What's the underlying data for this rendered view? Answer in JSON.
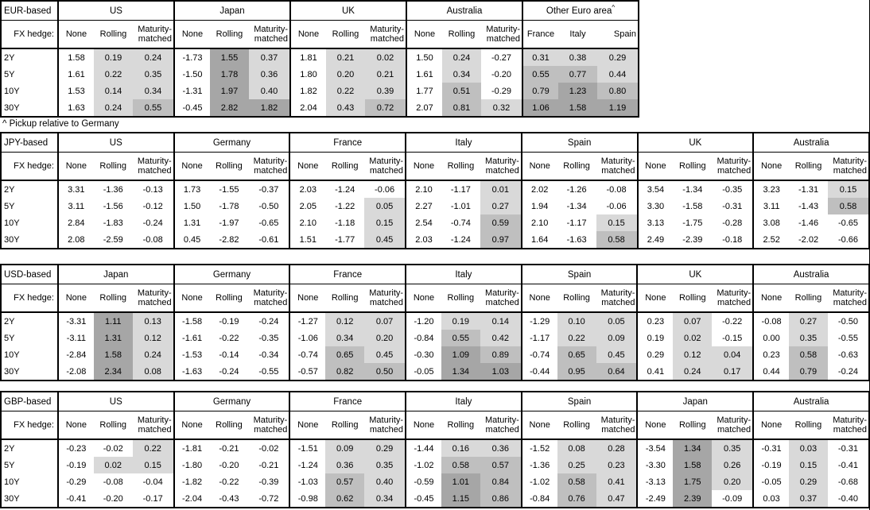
{
  "page": {
    "footnote": "^ Pickup relative to Germany",
    "fx_hedge_label": "FX hedge:"
  },
  "shade_colors": {
    "light": "#d9d9d9",
    "medium": "#bfbfbf",
    "dark": "#a6a6a6"
  },
  "shade_rule": {
    "light_min": 0,
    "medium_min": 0.5,
    "dark_min": 1.0
  },
  "row_labels": [
    "2Y",
    "5Y",
    "10Y",
    "30Y"
  ],
  "default_subheaders": [
    "None",
    "Rolling",
    "Maturity-matched"
  ],
  "tables": [
    {
      "label": "EUR-based",
      "groups": [
        {
          "name": "US",
          "shade_all": false,
          "rows": [
            [
              "1.58",
              "0.19",
              "0.24"
            ],
            [
              "1.61",
              "0.22",
              "0.35"
            ],
            [
              "1.53",
              "0.14",
              "0.34"
            ],
            [
              "1.63",
              "0.24",
              "0.55"
            ]
          ]
        },
        {
          "name": "Japan",
          "shade_all": false,
          "rows": [
            [
              "-1.73",
              "1.55",
              "0.37"
            ],
            [
              "-1.50",
              "1.78",
              "0.36"
            ],
            [
              "-1.31",
              "1.97",
              "0.40"
            ],
            [
              "-0.45",
              "2.82",
              "1.82"
            ]
          ]
        },
        {
          "name": "UK",
          "shade_all": false,
          "rows": [
            [
              "1.81",
              "0.21",
              "0.02"
            ],
            [
              "1.80",
              "0.20",
              "0.21"
            ],
            [
              "1.82",
              "0.22",
              "0.39"
            ],
            [
              "2.04",
              "0.43",
              "0.72"
            ]
          ]
        },
        {
          "name": "Australia",
          "shade_all": false,
          "rows": [
            [
              "1.50",
              "0.24",
              "-0.27"
            ],
            [
              "1.61",
              "0.34",
              "-0.20"
            ],
            [
              "1.77",
              "0.51",
              "-0.29"
            ],
            [
              "2.07",
              "0.81",
              "0.32"
            ]
          ]
        },
        {
          "name": "Other Euro area",
          "superscript": "^",
          "subheaders": [
            "France",
            "Italy",
            "Spain"
          ],
          "shade_all": true,
          "rows": [
            [
              "0.31",
              "0.38",
              "0.29"
            ],
            [
              "0.55",
              "0.77",
              "0.44"
            ],
            [
              "0.79",
              "1.23",
              "0.80"
            ],
            [
              "1.06",
              "1.58",
              "1.19"
            ]
          ]
        }
      ]
    },
    {
      "label": "JPY-based",
      "groups": [
        {
          "name": "US",
          "shade_all": false,
          "rows": [
            [
              "3.31",
              "-1.36",
              "-0.13"
            ],
            [
              "3.11",
              "-1.56",
              "-0.12"
            ],
            [
              "2.84",
              "-1.83",
              "-0.24"
            ],
            [
              "2.08",
              "-2.59",
              "-0.08"
            ]
          ]
        },
        {
          "name": "Germany",
          "shade_all": false,
          "rows": [
            [
              "1.73",
              "-1.55",
              "-0.37"
            ],
            [
              "1.50",
              "-1.78",
              "-0.50"
            ],
            [
              "1.31",
              "-1.97",
              "-0.65"
            ],
            [
              "0.45",
              "-2.82",
              "-0.61"
            ]
          ]
        },
        {
          "name": "France",
          "shade_all": false,
          "rows": [
            [
              "2.03",
              "-1.24",
              "-0.06"
            ],
            [
              "2.05",
              "-1.22",
              "0.05"
            ],
            [
              "2.10",
              "-1.18",
              "0.15"
            ],
            [
              "1.51",
              "-1.77",
              "0.45"
            ]
          ]
        },
        {
          "name": "Italy",
          "shade_all": false,
          "rows": [
            [
              "2.10",
              "-1.17",
              "0.01"
            ],
            [
              "2.27",
              "-1.01",
              "0.27"
            ],
            [
              "2.54",
              "-0.74",
              "0.59"
            ],
            [
              "2.03",
              "-1.24",
              "0.97"
            ]
          ]
        },
        {
          "name": "Spain",
          "shade_all": false,
          "rows": [
            [
              "2.02",
              "-1.26",
              "-0.08"
            ],
            [
              "1.94",
              "-1.34",
              "-0.06"
            ],
            [
              "2.10",
              "-1.17",
              "0.15"
            ],
            [
              "1.64",
              "-1.63",
              "0.58"
            ]
          ]
        },
        {
          "name": "UK",
          "shade_all": false,
          "rows": [
            [
              "3.54",
              "-1.34",
              "-0.35"
            ],
            [
              "3.30",
              "-1.58",
              "-0.31"
            ],
            [
              "3.13",
              "-1.75",
              "-0.28"
            ],
            [
              "2.49",
              "-2.39",
              "-0.18"
            ]
          ]
        },
        {
          "name": "Australia",
          "shade_all": false,
          "rows": [
            [
              "3.23",
              "-1.31",
              "0.15"
            ],
            [
              "3.11",
              "-1.43",
              "0.58"
            ],
            [
              "3.08",
              "-1.46",
              "-0.65"
            ],
            [
              "2.52",
              "-2.02",
              "-0.66"
            ]
          ]
        }
      ]
    },
    {
      "label": "USD-based",
      "groups": [
        {
          "name": "Japan",
          "shade_all": false,
          "rows": [
            [
              "-3.31",
              "1.11",
              "0.13"
            ],
            [
              "-3.11",
              "1.31",
              "0.12"
            ],
            [
              "-2.84",
              "1.58",
              "0.24"
            ],
            [
              "-2.08",
              "2.34",
              "0.08"
            ]
          ]
        },
        {
          "name": "Germany",
          "shade_all": false,
          "rows": [
            [
              "-1.58",
              "-0.19",
              "-0.24"
            ],
            [
              "-1.61",
              "-0.22",
              "-0.35"
            ],
            [
              "-1.53",
              "-0.14",
              "-0.34"
            ],
            [
              "-1.63",
              "-0.24",
              "-0.55"
            ]
          ]
        },
        {
          "name": "France",
          "shade_all": false,
          "rows": [
            [
              "-1.27",
              "0.12",
              "0.07"
            ],
            [
              "-1.06",
              "0.34",
              "0.20"
            ],
            [
              "-0.74",
              "0.65",
              "0.45"
            ],
            [
              "-0.57",
              "0.82",
              "0.50"
            ]
          ]
        },
        {
          "name": "Italy",
          "shade_all": false,
          "rows": [
            [
              "-1.20",
              "0.19",
              "0.14"
            ],
            [
              "-0.84",
              "0.55",
              "0.42"
            ],
            [
              "-0.30",
              "1.09",
              "0.89"
            ],
            [
              "-0.05",
              "1.34",
              "1.03"
            ]
          ]
        },
        {
          "name": "Spain",
          "shade_all": false,
          "rows": [
            [
              "-1.29",
              "0.10",
              "0.05"
            ],
            [
              "-1.17",
              "0.22",
              "0.09"
            ],
            [
              "-0.74",
              "0.65",
              "0.45"
            ],
            [
              "-0.44",
              "0.95",
              "0.64"
            ]
          ]
        },
        {
          "name": "UK",
          "shade_all": false,
          "rows": [
            [
              "0.23",
              "0.07",
              "-0.22"
            ],
            [
              "0.19",
              "0.02",
              "-0.15"
            ],
            [
              "0.29",
              "0.12",
              "0.04"
            ],
            [
              "0.41",
              "0.24",
              "0.17"
            ]
          ]
        },
        {
          "name": "Australia",
          "shade_all": false,
          "rows": [
            [
              "-0.08",
              "0.27",
              "-0.50"
            ],
            [
              "0.00",
              "0.35",
              "-0.55"
            ],
            [
              "0.23",
              "0.58",
              "-0.63"
            ],
            [
              "0.44",
              "0.79",
              "-0.24"
            ]
          ]
        }
      ]
    },
    {
      "label": "GBP-based",
      "groups": [
        {
          "name": "US",
          "shade_all": false,
          "rows": [
            [
              "-0.23",
              "-0.02",
              "0.22"
            ],
            [
              "-0.19",
              "0.02",
              "0.15"
            ],
            [
              "-0.29",
              "-0.08",
              "-0.04"
            ],
            [
              "-0.41",
              "-0.20",
              "-0.17"
            ]
          ]
        },
        {
          "name": "Germany",
          "shade_all": false,
          "rows": [
            [
              "-1.81",
              "-0.21",
              "-0.02"
            ],
            [
              "-1.80",
              "-0.20",
              "-0.21"
            ],
            [
              "-1.82",
              "-0.22",
              "-0.39"
            ],
            [
              "-2.04",
              "-0.43",
              "-0.72"
            ]
          ]
        },
        {
          "name": "France",
          "shade_all": false,
          "rows": [
            [
              "-1.51",
              "0.09",
              "0.29"
            ],
            [
              "-1.24",
              "0.36",
              "0.35"
            ],
            [
              "-1.03",
              "0.57",
              "0.40"
            ],
            [
              "-0.98",
              "0.62",
              "0.34"
            ]
          ]
        },
        {
          "name": "Italy",
          "shade_all": false,
          "rows": [
            [
              "-1.44",
              "0.16",
              "0.36"
            ],
            [
              "-1.02",
              "0.58",
              "0.57"
            ],
            [
              "-0.59",
              "1.01",
              "0.84"
            ],
            [
              "-0.45",
              "1.15",
              "0.86"
            ]
          ]
        },
        {
          "name": "Spain",
          "shade_all": false,
          "rows": [
            [
              "-1.52",
              "0.08",
              "0.28"
            ],
            [
              "-1.36",
              "0.25",
              "0.23"
            ],
            [
              "-1.02",
              "0.58",
              "0.41"
            ],
            [
              "-0.84",
              "0.76",
              "0.47"
            ]
          ]
        },
        {
          "name": "Japan",
          "shade_all": false,
          "rows": [
            [
              "-3.54",
              "1.34",
              "0.35"
            ],
            [
              "-3.30",
              "1.58",
              "0.26"
            ],
            [
              "-3.13",
              "1.75",
              "0.20"
            ],
            [
              "-2.49",
              "2.39",
              "-0.09"
            ]
          ]
        },
        {
          "name": "Australia",
          "shade_all": false,
          "rows": [
            [
              "-0.31",
              "0.03",
              "-0.31"
            ],
            [
              "-0.19",
              "0.15",
              "-0.41"
            ],
            [
              "-0.05",
              "0.29",
              "-0.68"
            ],
            [
              "0.03",
              "0.37",
              "-0.40"
            ]
          ]
        }
      ]
    }
  ]
}
